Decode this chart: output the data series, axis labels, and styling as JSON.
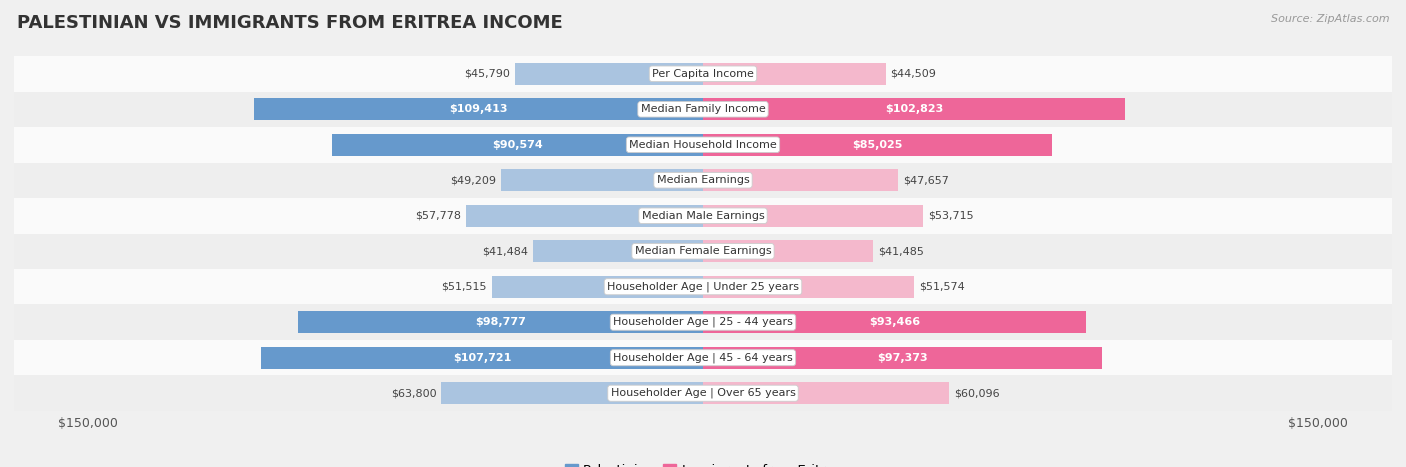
{
  "title": "PALESTINIAN VS IMMIGRANTS FROM ERITREA INCOME",
  "source": "Source: ZipAtlas.com",
  "categories": [
    "Per Capita Income",
    "Median Family Income",
    "Median Household Income",
    "Median Earnings",
    "Median Male Earnings",
    "Median Female Earnings",
    "Householder Age | Under 25 years",
    "Householder Age | 25 - 44 years",
    "Householder Age | 45 - 64 years",
    "Householder Age | Over 65 years"
  ],
  "palestinian_values": [
    45790,
    109413,
    90574,
    49209,
    57778,
    41484,
    51515,
    98777,
    107721,
    63800
  ],
  "eritrea_values": [
    44509,
    102823,
    85025,
    47657,
    53715,
    41485,
    51574,
    93466,
    97373,
    60096
  ],
  "palestinian_labels": [
    "$45,790",
    "$109,413",
    "$90,574",
    "$49,209",
    "$57,778",
    "$41,484",
    "$51,515",
    "$98,777",
    "$107,721",
    "$63,800"
  ],
  "eritrea_labels": [
    "$44,509",
    "$102,823",
    "$85,025",
    "$47,657",
    "$53,715",
    "$41,485",
    "$51,574",
    "$93,466",
    "$97,373",
    "$60,096"
  ],
  "palestinian_color_light": "#aac4e0",
  "palestinian_color_dark": "#6699cc",
  "eritrea_color_light": "#f4b8cc",
  "eritrea_color_dark": "#ee6699",
  "inside_threshold": 65000,
  "max_value": 150000,
  "bg_color": "#f0f0f0",
  "row_color_light": "#fafafa",
  "row_color_dark": "#eeeeee",
  "title_fontsize": 13,
  "legend_fontsize": 9.5
}
